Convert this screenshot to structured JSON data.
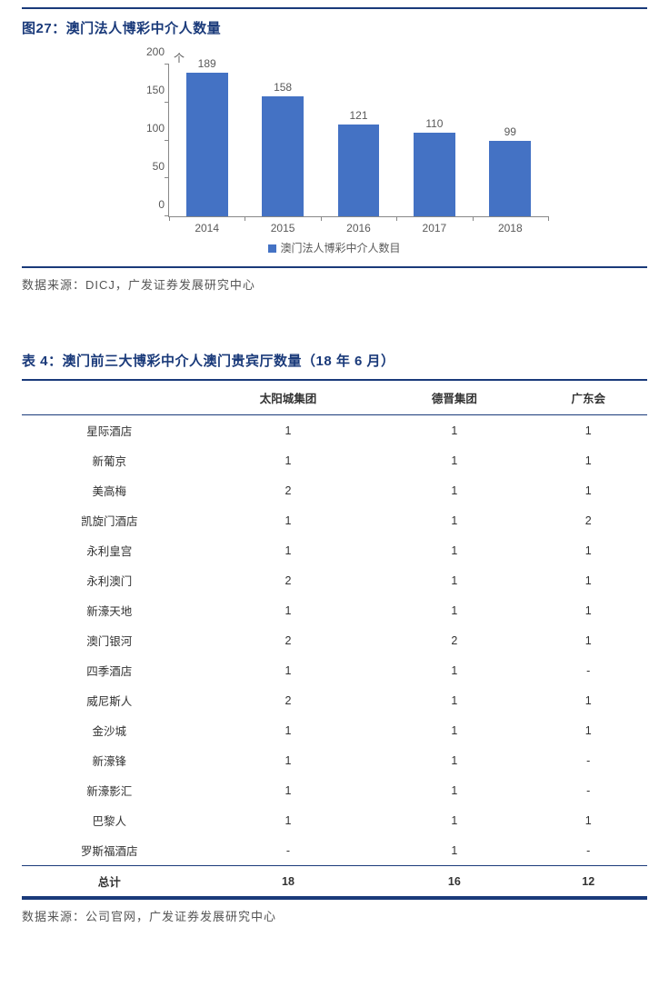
{
  "figure": {
    "title": "图27：澳门法人博彩中介人数量",
    "chart": {
      "type": "bar",
      "y_unit": "个",
      "categories": [
        "2014",
        "2015",
        "2016",
        "2017",
        "2018"
      ],
      "values": [
        189,
        158,
        121,
        110,
        99
      ],
      "bar_color": "#4472C4",
      "ylim": [
        0,
        200
      ],
      "ytick_step": 50,
      "yticks": [
        0,
        50,
        100,
        150,
        200
      ],
      "axis_color": "#888888",
      "label_color": "#595959",
      "background_color": "#ffffff",
      "label_fontsize": 12,
      "bar_width_ratio": 0.55,
      "legend_label": "澳门法人博彩中介人数目"
    },
    "source": "数据来源：DICJ，广发证券发展研究中心"
  },
  "table": {
    "title": "表 4：澳门前三大博彩中介人澳门贵宾厅数量（18 年 6 月）",
    "columns": [
      "",
      "太阳城集团",
      "德晋集团",
      "广东会"
    ],
    "rows": [
      [
        "星际酒店",
        "1",
        "1",
        "1"
      ],
      [
        "新葡京",
        "1",
        "1",
        "1"
      ],
      [
        "美高梅",
        "2",
        "1",
        "1"
      ],
      [
        "凯旋门酒店",
        "1",
        "1",
        "2"
      ],
      [
        "永利皇宫",
        "1",
        "1",
        "1"
      ],
      [
        "永利澳门",
        "2",
        "1",
        "1"
      ],
      [
        "新濠天地",
        "1",
        "1",
        "1"
      ],
      [
        "澳门银河",
        "2",
        "2",
        "1"
      ],
      [
        "四季酒店",
        "1",
        "1",
        "-"
      ],
      [
        "威尼斯人",
        "2",
        "1",
        "1"
      ],
      [
        "金沙城",
        "1",
        "1",
        "1"
      ],
      [
        "新濠锋",
        "1",
        "1",
        "-"
      ],
      [
        "新濠影汇",
        "1",
        "1",
        "-"
      ],
      [
        "巴黎人",
        "1",
        "1",
        "1"
      ],
      [
        "罗斯福酒店",
        "-",
        "1",
        "-"
      ]
    ],
    "total_row": [
      "总计",
      "18",
      "16",
      "12"
    ],
    "source": "数据来源：公司官网，广发证券发展研究中心",
    "border_color": "#1a3a7a"
  }
}
